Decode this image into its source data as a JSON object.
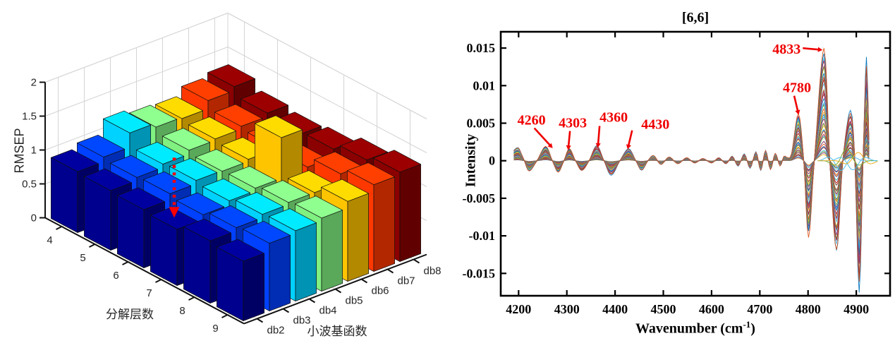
{
  "chart_data": [
    {
      "type": "bar",
      "subtype": "bar3d",
      "zlabel": "RMSEP",
      "xlabel": "分解层数",
      "ylabel": "小波基函数",
      "categories": [
        "4",
        "5",
        "6",
        "7",
        "8",
        "9"
      ],
      "z_ticks": [
        "0",
        "0.5",
        "1",
        "1.5",
        "2"
      ],
      "z_tick_values": [
        0,
        0.5,
        1,
        1.5,
        2
      ],
      "zlim": [
        0,
        2
      ],
      "grid": true,
      "series": [
        {
          "name": "db2",
          "color": "#00008F",
          "values": [
            0.9,
            0.88,
            0.86,
            0.83,
            0.92,
            0.88
          ]
        },
        {
          "name": "db3",
          "color": "#0040FF",
          "values": [
            0.97,
            0.93,
            0.95,
            0.9,
            0.97,
            1.0
          ]
        },
        {
          "name": "db4",
          "color": "#00D2FF",
          "values": [
            1.18,
            0.98,
            1.0,
            0.96,
            1.02,
            1.04
          ]
        },
        {
          "name": "db5",
          "color": "#80F080",
          "values": [
            1.12,
            1.04,
            0.99,
            1.0,
            1.05,
            1.08
          ]
        },
        {
          "name": "db6",
          "color": "#FFC400",
          "values": [
            1.1,
            1.06,
            1.02,
            1.6,
            1.05,
            1.18
          ]
        },
        {
          "name": "db7",
          "color": "#FF3800",
          "values": [
            1.22,
            1.1,
            1.06,
            1.02,
            1.18,
            1.28
          ]
        },
        {
          "name": "db8",
          "color": "#8B0000",
          "values": [
            1.28,
            1.15,
            1.1,
            1.14,
            1.24,
            1.32
          ]
        }
      ],
      "arrow_marker": {
        "level": "7",
        "series": "db2",
        "color": "#FF0000",
        "style": "dashed-down"
      }
    },
    {
      "type": "line",
      "subtype": "overlaid-spectra",
      "title": "[6,6]",
      "ylabel": "Intensity",
      "xlabel_parts": {
        "main": "Wavenumber (cm",
        "sup": "-1",
        "end": ")"
      },
      "x_ticks": [
        "4200",
        "4300",
        "4400",
        "4500",
        "4600",
        "4700",
        "4800",
        "4900"
      ],
      "x_tick_values": [
        4200,
        4300,
        4400,
        4500,
        4600,
        4700,
        4800,
        4900
      ],
      "y_ticks": [
        "0.015",
        "0.01",
        "0.005",
        "0",
        "-0.005",
        "-0.01",
        "-0.015"
      ],
      "y_tick_values": [
        0.015,
        0.01,
        0.005,
        0,
        -0.005,
        -0.01,
        -0.015
      ],
      "xlim": [
        4163,
        4970
      ],
      "ylim": [
        -0.018,
        0.0172
      ],
      "grid": false,
      "n_lines": 42,
      "palette": [
        "#0072BD",
        "#D95319",
        "#EDB120",
        "#7E2F8E",
        "#77AC30",
        "#4DBEEE",
        "#A2142F"
      ],
      "annotation_color": "#EF0000",
      "annotations": [
        {
          "label": "4260",
          "x": 4256,
          "y": 0.0019,
          "text_dx": -20,
          "text_dy": -38,
          "a1": [
            -16,
            -26
          ],
          "a2": [
            6,
            -2
          ]
        },
        {
          "label": "4303",
          "x": 4305,
          "y": 0.0016,
          "text_dx": 5,
          "text_dy": -37,
          "a1": [
            1,
            -25
          ],
          "a2": [
            -1,
            -4
          ]
        },
        {
          "label": "4360",
          "x": 4362,
          "y": 0.002,
          "text_dx": 24,
          "text_dy": -41,
          "a1": [
            4,
            -28
          ],
          "a2": [
            2,
            -3
          ]
        },
        {
          "label": "4430",
          "x": 4428,
          "y": 0.0016,
          "text_dx": 38,
          "text_dy": -35,
          "a1": [
            5,
            -26
          ],
          "a2": [
            0,
            -5
          ]
        },
        {
          "label": "4780",
          "x": 4780,
          "y": 0.0062,
          "text_dx": -2,
          "text_dy": -38,
          "a1": [
            -6,
            -26
          ],
          "a2": [
            -1,
            -5
          ]
        },
        {
          "label": "4833",
          "x": 4833,
          "y": 0.0148,
          "text_dx": -53,
          "text_dy": -1,
          "a1": [
            -30,
            -2
          ],
          "a2": [
            -8,
            0
          ]
        }
      ],
      "base_curve": [
        [
          4190,
          0.0014
        ],
        [
          4199,
          0.0018
        ],
        [
          4206,
          0.0009
        ],
        [
          4212,
          0.0
        ],
        [
          4222,
          -0.0014
        ],
        [
          4238,
          0.0
        ],
        [
          4256,
          0.0019
        ],
        [
          4270,
          0.0
        ],
        [
          4282,
          -0.0015
        ],
        [
          4294,
          0.0
        ],
        [
          4305,
          0.0016
        ],
        [
          4318,
          0.0
        ],
        [
          4331,
          -0.0013
        ],
        [
          4346,
          0.0
        ],
        [
          4362,
          0.002
        ],
        [
          4377,
          0.0
        ],
        [
          4392,
          -0.0019
        ],
        [
          4410,
          0.0
        ],
        [
          4428,
          0.0016
        ],
        [
          4443,
          0.0
        ],
        [
          4455,
          -0.0013
        ],
        [
          4468,
          0.0
        ],
        [
          4480,
          0.0007
        ],
        [
          4495,
          -0.0005
        ],
        [
          4512,
          0.0005
        ],
        [
          4530,
          -0.0004
        ],
        [
          4548,
          0.0004
        ],
        [
          4565,
          -0.0003
        ],
        [
          4582,
          0.0003
        ],
        [
          4600,
          -0.0003
        ],
        [
          4615,
          0.0004
        ],
        [
          4630,
          -0.0004
        ],
        [
          4643,
          0.0006
        ],
        [
          4655,
          -0.0007
        ],
        [
          4668,
          0.0009
        ],
        [
          4680,
          -0.001
        ],
        [
          4692,
          0.0012
        ],
        [
          4702,
          -0.0013
        ],
        [
          4712,
          0.0014
        ],
        [
          4722,
          -0.0012
        ],
        [
          4732,
          0.001
        ],
        [
          4742,
          -0.0007
        ],
        [
          4750,
          0.0006
        ],
        [
          4758,
          0.0004
        ],
        [
          4766,
          0.001
        ],
        [
          4780,
          0.0062
        ],
        [
          4791,
          0.0
        ],
        [
          4801,
          -0.01
        ],
        [
          4813,
          0.0
        ],
        [
          4833,
          0.0148
        ],
        [
          4845,
          0.0
        ],
        [
          4859,
          -0.012
        ],
        [
          4872,
          0.0
        ],
        [
          4888,
          0.0066
        ],
        [
          4897,
          0.0
        ],
        [
          4906,
          -0.0172
        ],
        [
          4914,
          0.0
        ],
        [
          4921,
          0.0136
        ],
        [
          4926,
          0.003
        ]
      ],
      "low_amplitude_loops": [
        {
          "center": 4868,
          "amp": -0.0013,
          "color": "#4DBEEE"
        },
        {
          "center": 4880,
          "amp": 0.0016,
          "color": "#77AC30"
        },
        {
          "center": 4893,
          "amp": -0.0012,
          "color": "#4DBEEE"
        },
        {
          "center": 4904,
          "amp": 0.0011,
          "color": "#EDB120"
        }
      ]
    }
  ]
}
